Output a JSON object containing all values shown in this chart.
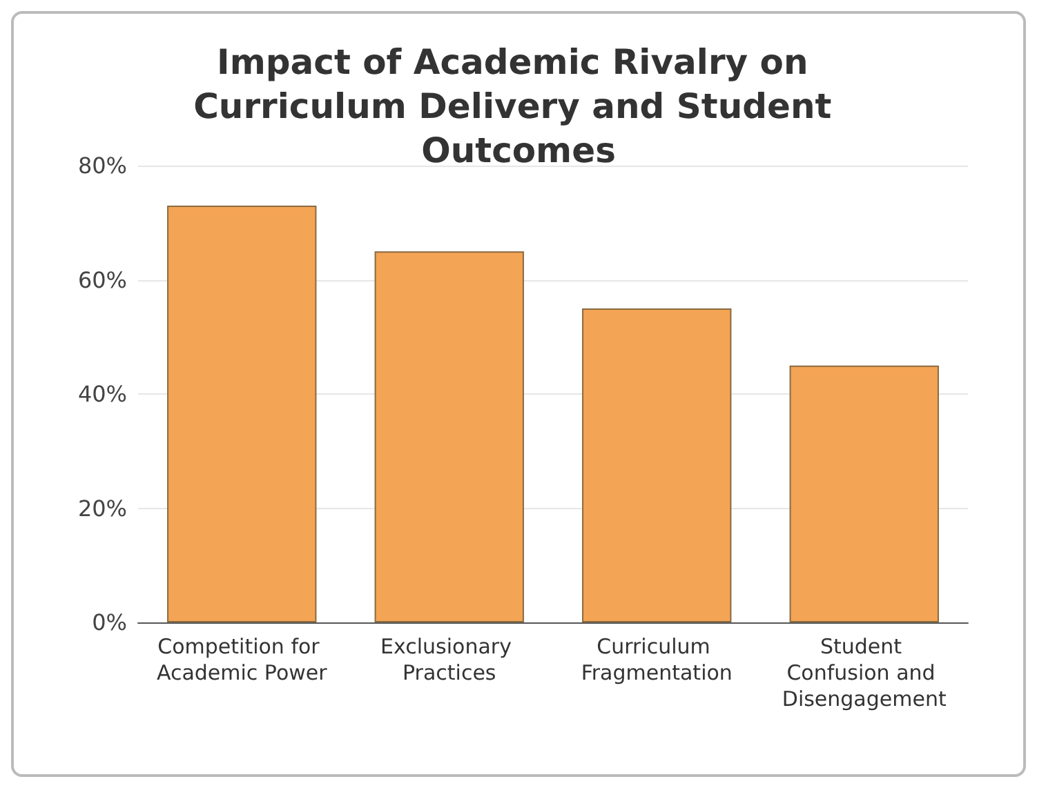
{
  "chart_data": {
    "type": "bar",
    "title": "Impact of Academic Rivalry on Curriculum Delivery and Student Outcomes",
    "categories": [
      "Competition for Academic Power",
      "Exclusionary Practices",
      "Curriculum Fragmentation",
      "Student Confusion and Disengagement"
    ],
    "values": [
      73,
      65,
      55,
      45
    ],
    "color": "#f4a455",
    "ylim": [
      0,
      80
    ],
    "yticks": [
      {
        "value": 0,
        "label": "0%"
      },
      {
        "value": 20,
        "label": "20%"
      },
      {
        "value": 40,
        "label": "40%"
      },
      {
        "value": 60,
        "label": "60%"
      },
      {
        "value": 80,
        "label": "80%"
      }
    ],
    "grid": "y"
  }
}
